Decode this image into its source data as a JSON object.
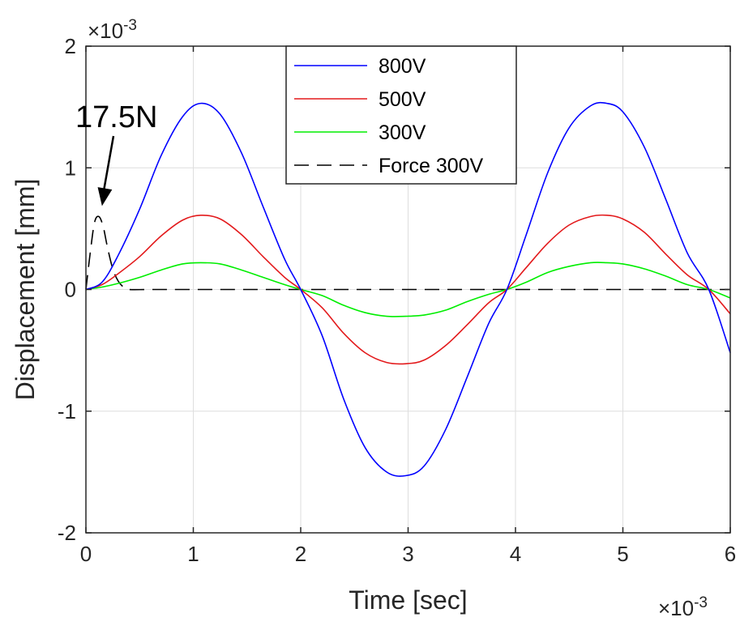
{
  "chart_data": {
    "type": "line",
    "xlabel": "Time [sec]",
    "ylabel": "Displacement [mm]",
    "x_multiplier_label": "×10",
    "x_multiplier_exp": "-3",
    "y_multiplier_label": "×10",
    "y_multiplier_exp": "-3",
    "xlim": [
      0,
      6
    ],
    "ylim": [
      -2,
      2
    ],
    "x_ticks": [
      0,
      1,
      2,
      3,
      4,
      5,
      6
    ],
    "y_ticks": [
      -2,
      -1,
      0,
      1,
      2
    ],
    "x_tick_labels": [
      "0",
      "1",
      "2",
      "3",
      "4",
      "5",
      "6"
    ],
    "y_tick_labels": [
      "-2",
      "-1",
      "0",
      "1",
      "2"
    ],
    "grid": true,
    "legend_position": "top-center",
    "series": [
      {
        "name": "800V",
        "color": "#0000ff",
        "style": "solid",
        "x": [
          0,
          0.15,
          0.3,
          0.5,
          0.7,
          0.9,
          1.07,
          1.25,
          1.45,
          1.65,
          1.85,
          2.0,
          2.2,
          2.4,
          2.6,
          2.8,
          2.98,
          3.15,
          3.35,
          3.55,
          3.75,
          3.92,
          4.1,
          4.3,
          4.5,
          4.7,
          4.85,
          5.0,
          5.2,
          5.4,
          5.6,
          5.8,
          6.0
        ],
        "y": [
          0,
          0.06,
          0.28,
          0.66,
          1.1,
          1.42,
          1.53,
          1.44,
          1.12,
          0.68,
          0.25,
          0,
          -0.38,
          -0.9,
          -1.3,
          -1.5,
          -1.53,
          -1.45,
          -1.15,
          -0.72,
          -0.28,
          0,
          0.45,
          0.96,
          1.33,
          1.51,
          1.53,
          1.46,
          1.17,
          0.74,
          0.3,
          0,
          -0.52
        ]
      },
      {
        "name": "500V",
        "color": "#e31a1c",
        "style": "solid",
        "x": [
          0,
          0.15,
          0.3,
          0.5,
          0.7,
          0.9,
          1.07,
          1.25,
          1.45,
          1.65,
          1.85,
          2.0,
          2.2,
          2.4,
          2.6,
          2.8,
          2.98,
          3.15,
          3.35,
          3.55,
          3.75,
          3.92,
          4.1,
          4.3,
          4.5,
          4.7,
          4.85,
          5.0,
          5.2,
          5.4,
          5.6,
          5.8,
          6.0
        ],
        "y": [
          0,
          0.04,
          0.13,
          0.27,
          0.44,
          0.57,
          0.61,
          0.58,
          0.45,
          0.27,
          0.1,
          0,
          -0.15,
          -0.36,
          -0.52,
          -0.6,
          -0.61,
          -0.58,
          -0.46,
          -0.29,
          -0.11,
          0,
          0.18,
          0.38,
          0.53,
          0.6,
          0.61,
          0.58,
          0.47,
          0.29,
          0.12,
          0,
          -0.2
        ]
      },
      {
        "name": "300V",
        "color": "#00ee00",
        "style": "solid",
        "x": [
          0,
          0.15,
          0.3,
          0.5,
          0.7,
          0.9,
          1.07,
          1.25,
          1.45,
          1.65,
          1.85,
          2.0,
          2.2,
          2.4,
          2.6,
          2.8,
          2.98,
          3.15,
          3.35,
          3.55,
          3.75,
          3.92,
          4.1,
          4.3,
          4.5,
          4.7,
          4.85,
          5.0,
          5.2,
          5.4,
          5.6,
          5.8,
          6.0
        ],
        "y": [
          0,
          0.02,
          0.05,
          0.1,
          0.16,
          0.21,
          0.22,
          0.21,
          0.16,
          0.1,
          0.04,
          0,
          -0.05,
          -0.13,
          -0.19,
          -0.22,
          -0.22,
          -0.21,
          -0.17,
          -0.1,
          -0.04,
          0,
          0.06,
          0.14,
          0.19,
          0.22,
          0.22,
          0.21,
          0.17,
          0.11,
          0.04,
          0,
          -0.07
        ]
      },
      {
        "name": "Force 300V",
        "color": "#000000",
        "style": "dashed",
        "x": [
          0,
          0.04,
          0.08,
          0.12,
          0.16,
          0.2,
          0.25,
          0.3,
          0.35,
          0.4,
          0.6,
          1.0,
          2.0,
          3.0,
          4.0,
          5.0,
          6.0
        ],
        "y": [
          0,
          0.3,
          0.55,
          0.6,
          0.52,
          0.35,
          0.17,
          0.07,
          0.02,
          0,
          0,
          0,
          0,
          0,
          0,
          0,
          0
        ]
      }
    ],
    "annotations": [
      {
        "text": "17.5N",
        "arrow_to": [
          0.15,
          0.62
        ]
      }
    ]
  }
}
